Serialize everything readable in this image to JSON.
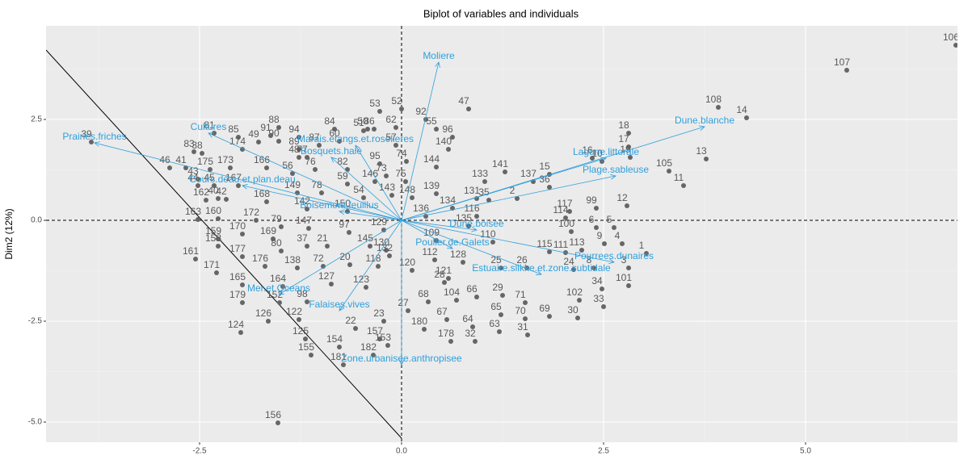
{
  "chart_data": {
    "type": "scatter",
    "title": "Biplot of variables and individuals",
    "y_label": "Dim2 (12%)",
    "xlim": [
      -4.4,
      6.88
    ],
    "ylim": [
      -5.5,
      4.82
    ],
    "xticks": [
      -2.5,
      {
        "value": 0,
        "label": "0.0"
      },
      2.5,
      {
        "value": 5,
        "label": "5.0"
      }
    ],
    "yticks": [
      {
        "value": -5,
        "label": "-5.0"
      },
      -2.5,
      {
        "value": 0,
        "label": "0.0"
      },
      2.5
    ],
    "grid": true,
    "zero_lines": {
      "x": 0,
      "y": 0
    },
    "reference_line": {
      "x": [
        -4.4,
        0
      ],
      "y": [
        4.22,
        -5.4
      ]
    },
    "point_color": "#666666",
    "variable_color": "#2e9fdc",
    "individuals": {
      "labels": [
        "106",
        "107",
        "108",
        "14",
        "13",
        "105",
        "11",
        "12",
        "18",
        "17",
        "19",
        "16",
        "10",
        "15",
        "36",
        "137",
        "141",
        "133",
        "139",
        "2",
        "35",
        "131",
        "116",
        "134",
        "148",
        "144",
        "140",
        "96",
        "55",
        "47",
        "92",
        "52",
        "62",
        "53",
        "86",
        "50",
        "51",
        "84",
        "88",
        "94",
        "85",
        "90",
        "60",
        "87",
        "89",
        "91",
        "57",
        "74",
        "75",
        "73",
        "95",
        "146",
        "59",
        "82",
        "76",
        "77",
        "48",
        "49",
        "174",
        "56",
        "166",
        "173",
        "175",
        "46",
        "41",
        "43",
        "42",
        "44",
        "45",
        "162",
        "40",
        "163",
        "160",
        "159",
        "170",
        "169",
        "177",
        "171",
        "176",
        "80",
        "79",
        "168",
        "172",
        "167",
        "149",
        "78",
        "142",
        "150",
        "54",
        "143",
        "129",
        "97",
        "147",
        "37",
        "21",
        "145",
        "130",
        "132",
        "118",
        "120",
        "138",
        "72",
        "20",
        "165",
        "164",
        "127",
        "123",
        "179",
        "152",
        "98",
        "126",
        "122",
        "124",
        "125",
        "22",
        "157",
        "23",
        "27",
        "180",
        "68",
        "104",
        "67",
        "66",
        "65",
        "64",
        "32",
        "178",
        "63",
        "31",
        "70",
        "69",
        "30",
        "71",
        "29",
        "28",
        "121",
        "128",
        "25",
        "26",
        "24",
        "8",
        "3",
        "34",
        "101",
        "102",
        "33",
        "113",
        "1",
        "4",
        "9",
        "5",
        "6",
        "100",
        "117",
        "99",
        "114",
        "111",
        "115",
        "110",
        "135",
        "109",
        "112",
        "136",
        "155",
        "154",
        "182",
        "181",
        "153",
        "81",
        "156",
        "39",
        "161",
        "158",
        "38",
        "83"
      ],
      "x": [
        6.86,
        5.51,
        3.92,
        4.27,
        3.77,
        3.31,
        3.49,
        2.79,
        2.81,
        2.81,
        2.83,
        2.36,
        2.48,
        1.83,
        1.83,
        1.63,
        1.28,
        1.03,
        0.43,
        1.43,
        1.08,
        0.93,
        0.93,
        0.63,
        0.13,
        0.43,
        0.58,
        0.63,
        0.43,
        0.83,
        0.3,
        0.0,
        -0.07,
        -0.27,
        -0.34,
        -0.42,
        -0.47,
        -0.83,
        -1.52,
        -1.27,
        -2.02,
        -1.52,
        -0.77,
        -1.02,
        -1.27,
        -1.62,
        -0.07,
        0.06,
        0.05,
        -0.19,
        -0.27,
        -0.33,
        -0.67,
        -0.67,
        -1.07,
        -1.17,
        -1.27,
        -1.77,
        -1.97,
        -1.35,
        -1.67,
        -2.12,
        -2.37,
        -2.87,
        -2.67,
        -2.52,
        -2.17,
        -2.52,
        -2.32,
        -2.42,
        -2.27,
        -2.52,
        -2.27,
        -2.27,
        -1.97,
        -1.59,
        -1.97,
        -2.29,
        -1.69,
        -1.49,
        -1.49,
        -1.67,
        -1.8,
        -2.02,
        -1.29,
        -0.99,
        -1.17,
        -0.67,
        -0.47,
        -0.12,
        -0.22,
        -0.65,
        -1.15,
        -1.17,
        -0.92,
        -0.39,
        -0.19,
        -0.15,
        -0.29,
        0.13,
        -1.29,
        -0.97,
        -0.64,
        -1.97,
        -1.47,
        -0.87,
        -0.44,
        -1.97,
        -1.51,
        -1.17,
        -1.65,
        -1.27,
        -1.99,
        -1.19,
        -0.57,
        -0.27,
        -0.22,
        0.08,
        0.28,
        0.33,
        0.68,
        0.56,
        0.93,
        1.23,
        0.88,
        0.91,
        0.61,
        1.21,
        1.56,
        1.53,
        1.83,
        2.18,
        1.53,
        1.25,
        0.53,
        0.58,
        0.76,
        1.23,
        1.55,
        2.13,
        2.38,
        2.81,
        2.48,
        2.81,
        2.2,
        2.5,
        2.23,
        3.03,
        2.73,
        2.51,
        2.63,
        2.41,
        2.1,
        2.08,
        2.41,
        2.03,
        2.03,
        1.83,
        1.13,
        0.83,
        0.43,
        0.41,
        0.3,
        -1.12,
        -0.77,
        -0.35,
        -0.72,
        -0.17,
        -2.32,
        -1.53,
        -3.84,
        -2.55,
        -2.27,
        -2.47,
        -2.57
      ],
      "y": [
        4.34,
        3.72,
        2.8,
        2.54,
        1.52,
        1.22,
        0.86,
        0.36,
        2.16,
        1.82,
        1.56,
        1.54,
        1.46,
        1.14,
        0.82,
        0.96,
        1.2,
        0.96,
        0.66,
        0.54,
        0.5,
        0.54,
        0.1,
        0.3,
        0.56,
        1.32,
        1.76,
        2.06,
        2.26,
        2.76,
        2.5,
        2.76,
        2.3,
        2.7,
        2.26,
        2.26,
        2.22,
        2.26,
        2.3,
        2.06,
        2.06,
        1.96,
        1.96,
        1.86,
        1.76,
        2.1,
        1.86,
        1.46,
        0.96,
        1.1,
        1.4,
        0.96,
        0.9,
        1.26,
        1.26,
        1.56,
        1.56,
        1.94,
        1.76,
        1.16,
        1.3,
        1.3,
        1.26,
        1.3,
        1.3,
        1.02,
        0.52,
        0.86,
        0.86,
        0.5,
        0.54,
        0.02,
        0.04,
        -0.46,
        -0.34,
        -0.46,
        -0.9,
        -1.3,
        -1.14,
        -0.76,
        -0.16,
        0.46,
        0.0,
        0.86,
        0.68,
        0.68,
        0.28,
        0.22,
        0.56,
        0.62,
        -0.24,
        -0.3,
        -0.2,
        -0.64,
        -0.64,
        -0.64,
        -0.74,
        -0.88,
        -1.14,
        -1.24,
        -1.18,
        -1.14,
        -1.1,
        -1.6,
        -1.64,
        -1.58,
        -1.66,
        -2.04,
        -2.04,
        -2.02,
        -2.5,
        -2.46,
        -2.78,
        -2.94,
        -2.68,
        -2.94,
        -2.5,
        -2.24,
        -2.7,
        -2.02,
        -1.98,
        -2.46,
        -1.9,
        -2.34,
        -2.64,
        -3.0,
        -3.0,
        -2.76,
        -2.84,
        -2.44,
        -2.38,
        -2.42,
        -2.04,
        -1.86,
        -1.54,
        -1.44,
        -1.04,
        -1.18,
        -1.18,
        -1.22,
        -1.18,
        -1.18,
        -1.7,
        -1.62,
        -1.98,
        -2.14,
        -0.74,
        -0.82,
        -0.58,
        -0.58,
        -0.18,
        -0.18,
        -0.28,
        0.22,
        0.3,
        0.06,
        -0.8,
        -0.78,
        -0.54,
        -0.14,
        -0.5,
        -0.98,
        0.1,
        -3.34,
        -3.14,
        -3.34,
        -3.58,
        -3.1,
        2.16,
        -5.02,
        1.94,
        -0.96,
        -0.64,
        1.66,
        1.7
      ]
    },
    "variables": {
      "labels": [
        "Moliere",
        "Prairies.friches",
        "Cultures",
        "Marais.etangs.et.roselieres",
        "Bosquets.haie",
        "Cours.deau.et.plan.deau",
        "Boisement.feuillus",
        "Dune.blanche",
        "Lagune.littorale",
        "Plage.sableuse",
        "Dune.boisee",
        "Poulier.de.Galets",
        "Pourrees.dunaires",
        "Estuaire.slikke.et.zone.subtidale",
        "Mer.et.Oceans",
        "Falaises.vives",
        "Zone.urbanisee.anthropisee"
      ],
      "x": [
        0.46,
        -3.8,
        -2.39,
        -0.57,
        -0.87,
        -1.97,
        -0.77,
        3.75,
        2.53,
        2.65,
        0.93,
        0.63,
        2.63,
        1.73,
        -1.52,
        -0.77,
        0
      ],
      "y": [
        3.92,
        1.92,
        2.16,
        1.86,
        1.56,
        0.86,
        0.22,
        2.32,
        1.54,
        1.1,
        -0.24,
        -0.7,
        -1.04,
        -1.34,
        -1.84,
        -2.24,
        -3.58
      ]
    }
  }
}
